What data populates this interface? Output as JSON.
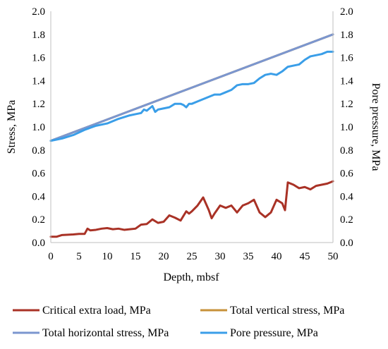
{
  "chart_data": {
    "type": "line",
    "title": "",
    "xlabel": "Depth, mbsf",
    "ylabel": "Stress, MPa",
    "y2label": "Pore pressure, MPa",
    "xlim": [
      0,
      50
    ],
    "ylim": [
      0,
      2.0
    ],
    "y2lim": [
      0,
      2.0
    ],
    "x_ticks": [
      "0",
      "5",
      "10",
      "15",
      "20",
      "25",
      "30",
      "35",
      "40",
      "45",
      "50"
    ],
    "y_ticks": [
      "0.0",
      "0.2",
      "0.4",
      "0.6",
      "0.8",
      "1.0",
      "1.2",
      "1.4",
      "1.6",
      "1.8",
      "2.0"
    ],
    "y2_ticks": [
      "0.0",
      "0.2",
      "0.4",
      "0.6",
      "0.8",
      "1.0",
      "1.2",
      "1.4",
      "1.6",
      "1.8",
      "2.0"
    ],
    "grid": false,
    "legend_position": "bottom",
    "series": [
      {
        "name": "Critical extra load, MPa",
        "color": "#a93226",
        "axis": "left",
        "x": [
          0,
          1,
          2,
          4,
          5,
          6,
          6.5,
          7,
          8,
          9,
          10,
          11,
          12,
          13,
          14,
          15,
          16,
          17,
          18,
          19,
          20,
          21,
          22,
          23,
          24,
          24.5,
          25,
          26,
          27,
          28,
          28.5,
          29,
          30,
          31,
          32,
          33,
          34,
          35,
          36,
          37,
          38,
          39,
          40,
          41,
          41.5,
          42,
          43,
          44,
          45,
          46,
          47,
          48,
          49,
          50
        ],
        "y": [
          0.05,
          0.05,
          0.065,
          0.07,
          0.075,
          0.075,
          0.12,
          0.105,
          0.11,
          0.12,
          0.125,
          0.115,
          0.12,
          0.11,
          0.115,
          0.12,
          0.155,
          0.16,
          0.2,
          0.17,
          0.18,
          0.235,
          0.215,
          0.19,
          0.27,
          0.25,
          0.27,
          0.32,
          0.39,
          0.28,
          0.21,
          0.25,
          0.32,
          0.3,
          0.32,
          0.26,
          0.32,
          0.34,
          0.37,
          0.26,
          0.22,
          0.26,
          0.37,
          0.34,
          0.28,
          0.52,
          0.5,
          0.47,
          0.48,
          0.46,
          0.49,
          0.5,
          0.51,
          0.53
        ]
      },
      {
        "name": "Total vertical stress, MPa",
        "color": "#c7913a",
        "axis": "left",
        "x": [
          0,
          50
        ],
        "y": [
          0.88,
          1.8
        ]
      },
      {
        "name": "Total horizontal stress, MPa",
        "color": "#7b96cf",
        "axis": "left",
        "x": [
          0,
          50
        ],
        "y": [
          0.88,
          1.8
        ]
      },
      {
        "name": "Pore pressure, MPa",
        "color": "#3a9ee8",
        "axis": "right",
        "x": [
          0,
          2,
          4,
          6,
          8,
          10,
          12,
          14,
          15,
          16,
          16.5,
          17,
          17.5,
          18,
          18.5,
          19,
          20,
          21,
          22,
          23,
          23.5,
          24,
          24.5,
          25,
          26,
          27,
          28,
          29,
          30,
          31,
          32,
          33,
          34,
          35,
          36,
          37,
          38,
          39,
          40,
          41,
          42,
          43,
          44,
          45,
          46,
          47,
          48,
          49,
          50
        ],
        "y": [
          0.88,
          0.9,
          0.93,
          0.975,
          1.01,
          1.03,
          1.07,
          1.1,
          1.11,
          1.12,
          1.15,
          1.14,
          1.16,
          1.18,
          1.13,
          1.15,
          1.16,
          1.17,
          1.2,
          1.2,
          1.19,
          1.17,
          1.2,
          1.2,
          1.22,
          1.24,
          1.26,
          1.28,
          1.28,
          1.3,
          1.32,
          1.36,
          1.37,
          1.37,
          1.38,
          1.42,
          1.45,
          1.46,
          1.45,
          1.48,
          1.52,
          1.53,
          1.54,
          1.58,
          1.61,
          1.62,
          1.63,
          1.65,
          1.65
        ]
      }
    ]
  }
}
